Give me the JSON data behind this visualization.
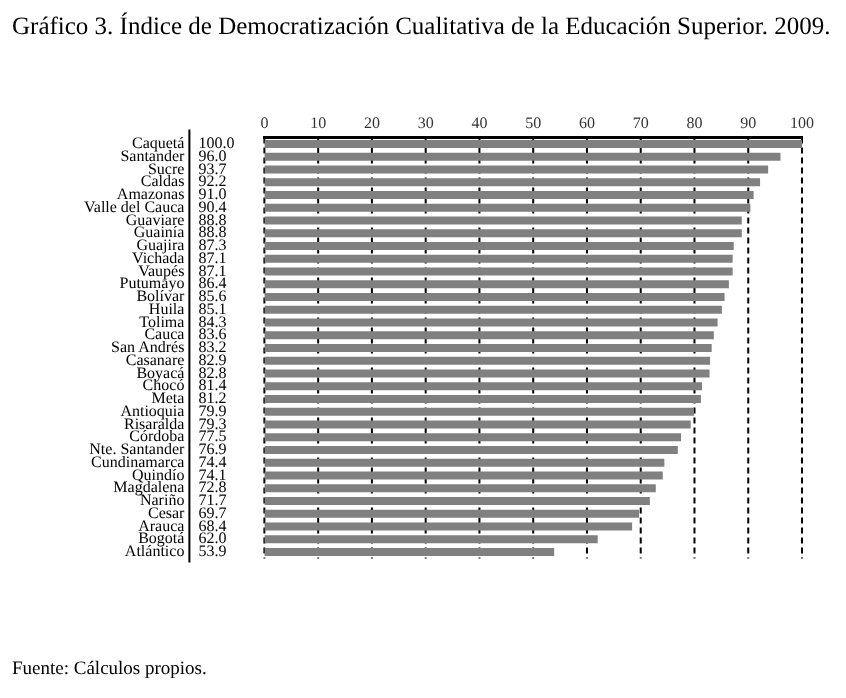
{
  "chart_data": {
    "type": "bar",
    "orientation": "horizontal",
    "title": "Gráfico 3. Índice de Democratización Cualitativa de la Educación Superior. 2009.",
    "categories": [
      "Caquetá",
      "Santander",
      "Sucre",
      "Caldas",
      "Amazonas",
      "Valle del Cauca",
      "Guaviare",
      "Guainía",
      "Guajira",
      "Vichada",
      "Vaupés",
      "Putumayo",
      "Bolívar",
      "Huila",
      "Tolima",
      "Cauca",
      "San Andrés",
      "Casanare",
      "Boyacá",
      "Chocó",
      "Meta",
      "Antioquia",
      "Risaralda",
      "Córdoba",
      "Nte. Santander",
      "Cundinamarca",
      "Quindío",
      "Magdalena",
      "Nariño",
      "Cesar",
      "Arauca",
      "Bogotá",
      "Atlántico"
    ],
    "values": [
      100.0,
      96.0,
      93.7,
      92.2,
      91.0,
      90.4,
      88.8,
      88.8,
      87.3,
      87.1,
      87.1,
      86.4,
      85.6,
      85.1,
      84.3,
      83.6,
      83.2,
      82.9,
      82.8,
      81.4,
      81.2,
      79.9,
      79.3,
      77.5,
      76.9,
      74.4,
      74.1,
      72.8,
      71.7,
      69.7,
      68.4,
      62.0,
      53.9
    ],
    "value_labels": [
      "100.0",
      "96.0",
      "93.7",
      "92.2",
      "91.0",
      "90.4",
      "88.8",
      "88.8",
      "87.3",
      "87.1",
      "87.1",
      "86.4",
      "85.6",
      "85.1",
      "84.3",
      "83.6",
      "83.2",
      "82.9",
      "82.8",
      "81.4",
      "81.2",
      "79.9",
      "79.3",
      "77.5",
      "76.9",
      "74.4",
      "74.1",
      "72.8",
      "71.7",
      "69.7",
      "68.4",
      "62.0",
      "53.9"
    ],
    "color": "#808080",
    "xlim": [
      0,
      100
    ],
    "xticks": [
      0,
      10,
      20,
      30,
      40,
      50,
      60,
      70,
      80,
      90,
      100
    ],
    "grid": "x",
    "line_style": "dashed",
    "annotations": [
      "Fuente: Cálculos propios."
    ]
  }
}
